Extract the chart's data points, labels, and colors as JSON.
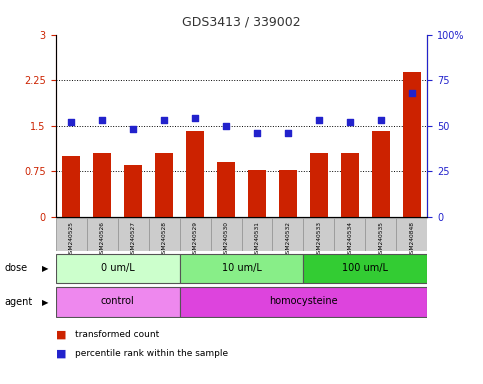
{
  "title": "GDS3413 / 339002",
  "samples": [
    "GSM240525",
    "GSM240526",
    "GSM240527",
    "GSM240528",
    "GSM240529",
    "GSM240530",
    "GSM240531",
    "GSM240532",
    "GSM240533",
    "GSM240534",
    "GSM240535",
    "GSM240848"
  ],
  "bar_values": [
    1.0,
    1.05,
    0.85,
    1.05,
    1.42,
    0.9,
    0.78,
    0.78,
    1.05,
    1.05,
    1.42,
    2.38
  ],
  "dot_values": [
    52,
    53,
    48,
    53,
    54,
    50,
    46,
    46,
    53,
    52,
    53,
    68
  ],
  "bar_color": "#cc2200",
  "dot_color": "#2222cc",
  "ylim_left": [
    0,
    3
  ],
  "ylim_right": [
    0,
    100
  ],
  "yticks_left": [
    0,
    0.75,
    1.5,
    2.25,
    3
  ],
  "yticks_right": [
    0,
    25,
    50,
    75,
    100
  ],
  "ytick_labels_left": [
    "0",
    "0.75",
    "1.5",
    "2.25",
    "3"
  ],
  "ytick_labels_right": [
    "0",
    "25",
    "50",
    "75",
    "100%"
  ],
  "hlines": [
    0.75,
    1.5,
    2.25
  ],
  "dose_groups": [
    {
      "label": "0 um/L",
      "start": 0,
      "end": 4,
      "color": "#ccffcc"
    },
    {
      "label": "10 um/L",
      "start": 4,
      "end": 8,
      "color": "#88ee88"
    },
    {
      "label": "100 um/L",
      "start": 8,
      "end": 12,
      "color": "#33cc33"
    }
  ],
  "agent_groups": [
    {
      "label": "control",
      "start": 0,
      "end": 4,
      "color": "#ee88ee"
    },
    {
      "label": "homocysteine",
      "start": 4,
      "end": 12,
      "color": "#dd44dd"
    }
  ],
  "dose_label": "dose",
  "agent_label": "agent",
  "legend_bar": "transformed count",
  "legend_dot": "percentile rank within the sample",
  "background_color": "#ffffff",
  "tick_color_left": "#cc2200",
  "tick_color_right": "#2222cc",
  "sample_box_color": "#cccccc",
  "sample_box_edge": "#999999"
}
